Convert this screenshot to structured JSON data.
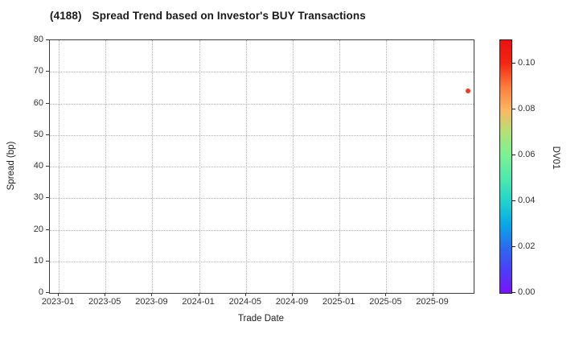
{
  "title": {
    "code": "(4188)",
    "text": "Spread Trend based on Investor's BUY Transactions"
  },
  "chart_data": {
    "type": "scatter",
    "title": "(4188) Spread Trend based on Investor's BUY Transactions",
    "xlabel": "Trade Date",
    "ylabel": "Spread (bp)",
    "x_start_month": "2023-01",
    "x_tick_labels": [
      "2023-01",
      "2023-05",
      "2023-09",
      "2024-01",
      "2024-05",
      "2024-09",
      "2025-01",
      "2025-05",
      "2025-09"
    ],
    "x_tick_interval_months": 4,
    "ylim": [
      0,
      80
    ],
    "y_ticks": [
      0,
      10,
      20,
      30,
      40,
      50,
      60,
      70,
      80
    ],
    "y_tick_labels": [
      "0",
      "10",
      "20",
      "30",
      "40",
      "50",
      "60",
      "70",
      "80"
    ],
    "grid": true,
    "points": [
      {
        "date": "2025-12",
        "spread_bp": 64,
        "dv01": 0.095,
        "color": "#f5391d"
      }
    ],
    "colorbar": {
      "label": "DV01",
      "min": 0.0,
      "max": 0.11,
      "ticks": [
        0.0,
        0.02,
        0.04,
        0.06,
        0.08,
        0.1
      ],
      "tick_labels": [
        "0.00",
        "0.02",
        "0.04",
        "0.06",
        "0.08",
        "0.10"
      ],
      "colormap": "rainbow"
    }
  },
  "colors": {
    "point": "#f5391d",
    "spine": "#3c3c3c",
    "grid": "#b3b3b3",
    "tick_text": "#333333",
    "title_text": "#1a1a1a",
    "colorbar_gradient_bottom_to_top": [
      "#7a14fa",
      "#4b3ef7",
      "#2b6cf0",
      "#09a8e6",
      "#22d3cd",
      "#4fe9ac",
      "#7bf193",
      "#b2e277",
      "#ffb461",
      "#fd7b3c",
      "#f22612",
      "#ed1111"
    ]
  }
}
